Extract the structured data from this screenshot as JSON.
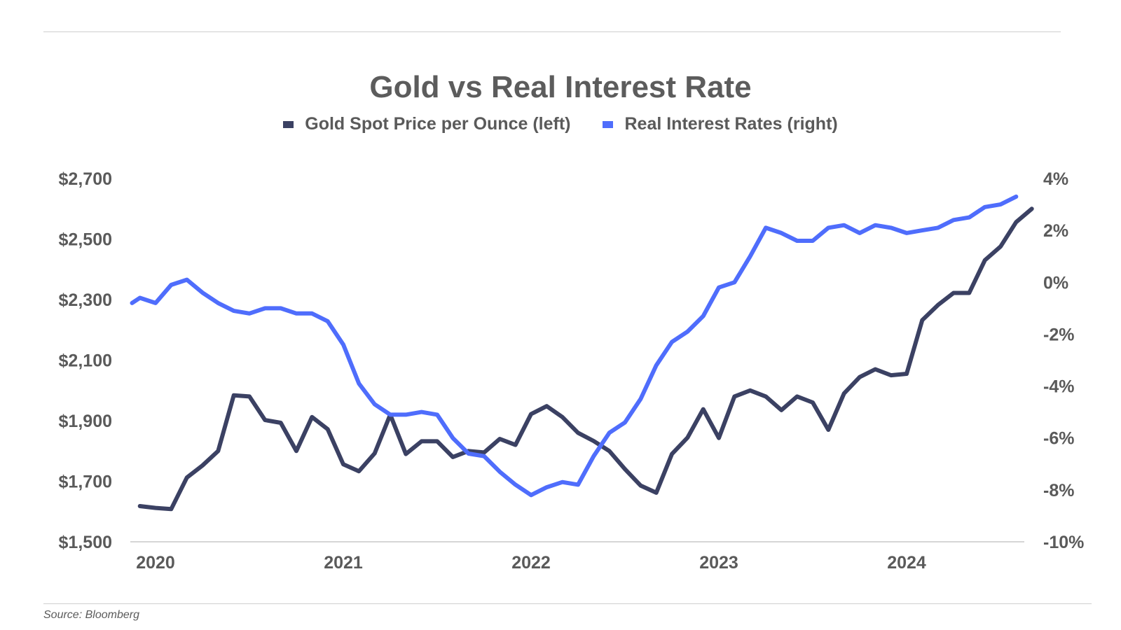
{
  "chart_data": {
    "type": "line",
    "title": "Gold vs Real Interest Rate",
    "source": "Source: Bloomberg",
    "x_ticks": [
      "2020",
      "2021",
      "2022",
      "2023",
      "2024"
    ],
    "y_left": {
      "ticks": [
        "$1,500",
        "$1,700",
        "$1,900",
        "$2,100",
        "$2,300",
        "$2,500",
        "$2,700"
      ],
      "ylim": [
        1500,
        2700
      ]
    },
    "y_right": {
      "ticks": [
        "-10%",
        "-8%",
        "-6%",
        "-4%",
        "-2%",
        "0%",
        "2%",
        "4%"
      ],
      "ylim": [
        -10,
        4
      ]
    },
    "legend_placement": "top-center",
    "series": [
      {
        "name": "Gold Spot Price per Ounce (left)",
        "axis": "left",
        "color": "#3b4163",
        "x": [
          "2019-12",
          "2020-01",
          "2020-02",
          "2020-03",
          "2020-04",
          "2020-05",
          "2020-06",
          "2020-07",
          "2020-08",
          "2020-09",
          "2020-10",
          "2020-11",
          "2020-12",
          "2021-01",
          "2021-02",
          "2021-03",
          "2021-04",
          "2021-05",
          "2021-06",
          "2021-07",
          "2021-08",
          "2021-09",
          "2021-10",
          "2021-11",
          "2021-12",
          "2022-01",
          "2022-02",
          "2022-03",
          "2022-04",
          "2022-05",
          "2022-06",
          "2022-07",
          "2022-08",
          "2022-09",
          "2022-10",
          "2022-11",
          "2022-12",
          "2023-01",
          "2023-02",
          "2023-03",
          "2023-04",
          "2023-05",
          "2023-06",
          "2023-07",
          "2023-08",
          "2023-09",
          "2023-10",
          "2023-11",
          "2023-12",
          "2024-01",
          "2024-02",
          "2024-03",
          "2024-04",
          "2024-05",
          "2024-06",
          "2024-07",
          "2024-08",
          "2024-09"
        ],
        "values": [
          1618,
          1612,
          1608,
          1712,
          1752,
          1800,
          1984,
          1980,
          1902,
          1893,
          1800,
          1912,
          1872,
          1756,
          1733,
          1792,
          1920,
          1790,
          1832,
          1832,
          1780,
          1800,
          1795,
          1840,
          1820,
          1922,
          1948,
          1912,
          1860,
          1833,
          1800,
          1740,
          1686,
          1662,
          1790,
          1844,
          1938,
          1843,
          1980,
          2000,
          1980,
          1935,
          1980,
          1960,
          1870,
          1990,
          2044,
          2070,
          2050,
          2055,
          2232,
          2282,
          2322,
          2322,
          2430,
          2475,
          2556,
          2600
        ]
      },
      {
        "name": "Real Interest Rates (right)",
        "axis": "right",
        "color": "#4f6dfc",
        "x": [
          "2019-11",
          "2019-12",
          "2020-01",
          "2020-02",
          "2020-03",
          "2020-04",
          "2020-05",
          "2020-06",
          "2020-07",
          "2020-08",
          "2020-09",
          "2020-10",
          "2020-11",
          "2020-12",
          "2021-01",
          "2021-02",
          "2021-03",
          "2021-04",
          "2021-05",
          "2021-06",
          "2021-07",
          "2021-08",
          "2021-09",
          "2021-10",
          "2021-11",
          "2021-12",
          "2022-01",
          "2022-02",
          "2022-03",
          "2022-04",
          "2022-05",
          "2022-06",
          "2022-07",
          "2022-08",
          "2022-09",
          "2022-10",
          "2022-11",
          "2022-12",
          "2023-01",
          "2023-02",
          "2023-03",
          "2023-04",
          "2023-05",
          "2023-06",
          "2023-07",
          "2023-08",
          "2023-09",
          "2023-10",
          "2023-11",
          "2023-12",
          "2024-01",
          "2024-02",
          "2024-03",
          "2024-04",
          "2024-05",
          "2024-06",
          "2024-07",
          "2024-08"
        ],
        "values": [
          -0.8,
          -0.6,
          -0.8,
          -0.1,
          0.1,
          -0.4,
          -0.8,
          -1.1,
          -1.2,
          -1.0,
          -1.0,
          -1.2,
          -1.2,
          -1.5,
          -2.4,
          -3.9,
          -4.7,
          -5.1,
          -5.1,
          -5.0,
          -5.1,
          -6.0,
          -6.6,
          -6.7,
          -7.3,
          -7.8,
          -8.2,
          -7.9,
          -7.7,
          -7.8,
          -6.7,
          -5.8,
          -5.4,
          -4.5,
          -3.2,
          -2.3,
          -1.9,
          -1.3,
          -0.2,
          0.0,
          1.0,
          2.1,
          1.9,
          1.6,
          1.6,
          2.1,
          2.2,
          1.9,
          2.2,
          2.1,
          1.9,
          2.0,
          2.1,
          2.4,
          2.5,
          2.9,
          3.0,
          3.3
        ]
      }
    ]
  }
}
